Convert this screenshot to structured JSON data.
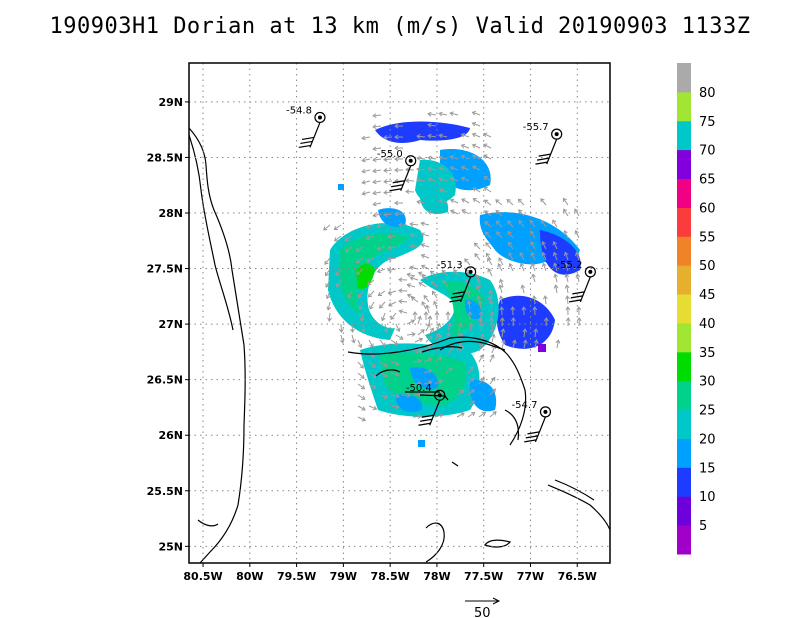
{
  "title": "190903H1 Dorian at 13 km (m/s) Valid 20190903 1133Z",
  "chart_data": {
    "type": "heatmap",
    "title": "190903H1 Dorian at 13 km (m/s) Valid 20190903 1133Z",
    "xlim": [
      -80.65,
      -76.15
    ],
    "ylim": [
      24.85,
      29.35
    ],
    "x_ticks": [
      {
        "v": -80.5,
        "label": "80.5W"
      },
      {
        "v": -80,
        "label": "80W"
      },
      {
        "v": -79.5,
        "label": "79.5W"
      },
      {
        "v": -79,
        "label": "79W"
      },
      {
        "v": -78.5,
        "label": "78.5W"
      },
      {
        "v": -78,
        "label": "78W"
      },
      {
        "v": -77.5,
        "label": "77.5W"
      },
      {
        "v": -77,
        "label": "77W"
      },
      {
        "v": -76.5,
        "label": "76.5W"
      }
    ],
    "y_ticks": [
      {
        "v": 25,
        "label": "25N"
      },
      {
        "v": 25.5,
        "label": "25.5N"
      },
      {
        "v": 26,
        "label": "26N"
      },
      {
        "v": 26.5,
        "label": "26.5N"
      },
      {
        "v": 27,
        "label": "27N"
      },
      {
        "v": 27.5,
        "label": "27.5N"
      },
      {
        "v": 28,
        "label": "28N"
      },
      {
        "v": 28.5,
        "label": "28.5N"
      },
      {
        "v": 29,
        "label": "29N"
      }
    ],
    "grid": true,
    "colorbar": {
      "labels": [
        "5",
        "10",
        "15",
        "20",
        "25",
        "30",
        "35",
        "40",
        "45",
        "50",
        "55",
        "60",
        "65",
        "70",
        "75",
        "80"
      ],
      "colors": [
        "#a000c8",
        "#6e00dc",
        "#1e3cff",
        "#00a0ff",
        "#00c8c8",
        "#00d28c",
        "#00dc00",
        "#a0e632",
        "#e6dc32",
        "#e6af2d",
        "#f08228",
        "#fa3c3c",
        "#f00082",
        "#8200dc",
        "#00c8c8",
        "#a0e632",
        "#aaaaaa"
      ]
    },
    "stations": [
      {
        "lon": -79.25,
        "lat": 28.86,
        "label": "-54.8"
      },
      {
        "lon": -78.28,
        "lat": 28.47,
        "label": "-55.0"
      },
      {
        "lon": -76.72,
        "lat": 28.71,
        "label": "-55.7"
      },
      {
        "lon": -77.64,
        "lat": 27.47,
        "label": "-51.3"
      },
      {
        "lon": -76.36,
        "lat": 27.47,
        "label": "-55.2"
      },
      {
        "lon": -77.97,
        "lat": 26.36,
        "label": "-50.4"
      },
      {
        "lon": -76.84,
        "lat": 26.21,
        "label": "-54.7"
      }
    ],
    "reference_vector": {
      "label": "50",
      "value": 50
    }
  }
}
